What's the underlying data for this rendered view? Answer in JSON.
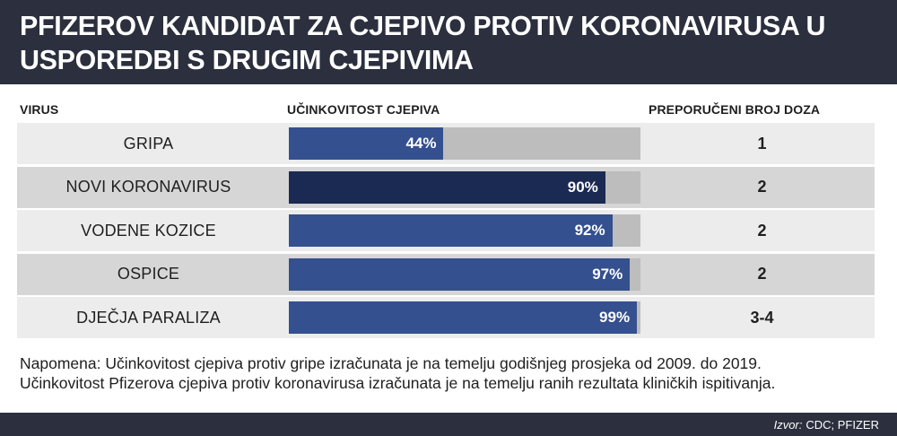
{
  "title": {
    "line1": "PFIZEROV KANDIDAT ZA CJEPIVO PROTIV KORONAVIRUSA U",
    "line2": "USPOREDBI S DRUGIM CJEPIVIMA"
  },
  "columns": {
    "virus": "VIRUS",
    "efficacy": "UČINKOVITOST CJEPIVA",
    "doses": "PREPORUČENI BROJ DOZA"
  },
  "colors": {
    "header_bg": "#2b2f3e",
    "bar": "#34508f",
    "bar_highlight": "#1b2a52",
    "track": "#bdbdbd",
    "row_light": "#ececec",
    "row_dark": "#d6d6d6"
  },
  "chart_data": {
    "type": "bar",
    "orientation": "horizontal",
    "categories": [
      "GRIPA",
      "NOVI KORONAVIRUS",
      "VODENE KOZICE",
      "OSPICE",
      "DJEČJA PARALIZA"
    ],
    "values": [
      44,
      90,
      92,
      97,
      99
    ],
    "value_labels": [
      "44%",
      "90%",
      "92%",
      "97%",
      "99%"
    ],
    "doses": [
      "1",
      "2",
      "2",
      "2",
      "3-4"
    ],
    "highlight_index": 1,
    "xlim": [
      0,
      100
    ]
  },
  "note": {
    "line1": "Napomena: Učinkovitost cjepiva protiv gripe izračunata je na temelju godišnjeg prosjeka od 2009. do 2019.",
    "line2": "Učinkovitost Pfizerova cjepiva protiv koronavirusa izračunata je na temelju ranih rezultata kliničkih ispitivanja."
  },
  "source": {
    "label": "Izvor:",
    "text": "CDC; PFIZER"
  }
}
